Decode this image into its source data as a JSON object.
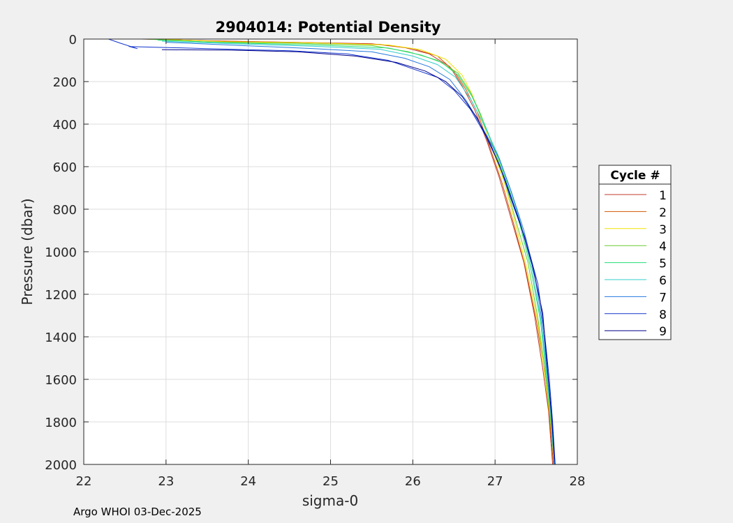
{
  "footer": "Argo WHOI 03-Dec-2025",
  "chart_data": {
    "type": "line",
    "title": "2904014: Potential Density",
    "xlabel": "sigma-0",
    "ylabel": "Pressure (dbar)",
    "xlim": [
      22,
      28
    ],
    "ylim": [
      0,
      2000
    ],
    "y_reversed": true,
    "grid": true,
    "xticks": [
      "22",
      "23",
      "24",
      "25",
      "26",
      "27",
      "28"
    ],
    "yticks": [
      "0",
      "200",
      "400",
      "600",
      "800",
      "1000",
      "1200",
      "1400",
      "1600",
      "1800",
      "2000"
    ],
    "legend": {
      "title": "Cycle #",
      "position": "outside-right"
    },
    "series": [
      {
        "name": "1",
        "color": "#c0392b",
        "points": [
          [
            22.7,
            0
          ],
          [
            23.5,
            8
          ],
          [
            24.5,
            15
          ],
          [
            25.5,
            22
          ],
          [
            25.9,
            40
          ],
          [
            26.2,
            70
          ],
          [
            26.45,
            130
          ],
          [
            26.6,
            220
          ],
          [
            26.75,
            330
          ],
          [
            26.9,
            480
          ],
          [
            27.05,
            650
          ],
          [
            27.2,
            850
          ],
          [
            27.35,
            1050
          ],
          [
            27.48,
            1300
          ],
          [
            27.58,
            1550
          ],
          [
            27.65,
            1750
          ],
          [
            27.7,
            2000
          ]
        ]
      },
      {
        "name": "2",
        "color": "#d35400",
        "points": [
          [
            22.8,
            0
          ],
          [
            23.6,
            10
          ],
          [
            24.6,
            16
          ],
          [
            25.6,
            25
          ],
          [
            26.0,
            45
          ],
          [
            26.3,
            80
          ],
          [
            26.5,
            150
          ],
          [
            26.65,
            240
          ],
          [
            26.78,
            340
          ],
          [
            26.92,
            490
          ],
          [
            27.08,
            670
          ],
          [
            27.22,
            860
          ],
          [
            27.36,
            1060
          ],
          [
            27.5,
            1320
          ],
          [
            27.6,
            1560
          ],
          [
            27.66,
            1770
          ],
          [
            27.71,
            2000
          ]
        ]
      },
      {
        "name": "3",
        "color": "#f1e200",
        "points": [
          [
            22.9,
            0
          ],
          [
            23.7,
            12
          ],
          [
            24.8,
            18
          ],
          [
            25.7,
            28
          ],
          [
            26.1,
            50
          ],
          [
            26.4,
            95
          ],
          [
            26.6,
            170
          ],
          [
            26.72,
            260
          ],
          [
            26.82,
            360
          ],
          [
            26.95,
            500
          ],
          [
            27.1,
            660
          ],
          [
            27.25,
            870
          ],
          [
            27.38,
            1070
          ],
          [
            27.52,
            1330
          ],
          [
            27.6,
            1570
          ],
          [
            27.67,
            1780
          ],
          [
            27.72,
            2000
          ]
        ]
      },
      {
        "name": "4",
        "color": "#66cc33",
        "points": [
          [
            22.75,
            0
          ],
          [
            23.5,
            14
          ],
          [
            24.6,
            20
          ],
          [
            25.5,
            30
          ],
          [
            25.95,
            60
          ],
          [
            26.3,
            100
          ],
          [
            26.55,
            160
          ],
          [
            26.7,
            250
          ],
          [
            26.82,
            350
          ],
          [
            26.95,
            480
          ],
          [
            27.1,
            640
          ],
          [
            27.25,
            850
          ],
          [
            27.4,
            1050
          ],
          [
            27.52,
            1310
          ],
          [
            27.61,
            1560
          ],
          [
            27.67,
            1770
          ],
          [
            27.72,
            2000
          ]
        ]
      },
      {
        "name": "5",
        "color": "#22dd77",
        "points": [
          [
            22.9,
            5
          ],
          [
            23.8,
            18
          ],
          [
            24.8,
            28
          ],
          [
            25.7,
            42
          ],
          [
            26.1,
            75
          ],
          [
            26.35,
            110
          ],
          [
            26.55,
            170
          ],
          [
            26.72,
            270
          ],
          [
            26.85,
            380
          ],
          [
            27.0,
            520
          ],
          [
            27.15,
            680
          ],
          [
            27.3,
            870
          ],
          [
            27.43,
            1070
          ],
          [
            27.55,
            1320
          ],
          [
            27.62,
            1560
          ],
          [
            27.68,
            1770
          ],
          [
            27.72,
            2000
          ]
        ]
      },
      {
        "name": "6",
        "color": "#33cccc",
        "points": [
          [
            22.95,
            10
          ],
          [
            23.8,
            22
          ],
          [
            24.8,
            34
          ],
          [
            25.6,
            48
          ],
          [
            26.0,
            80
          ],
          [
            26.3,
            120
          ],
          [
            26.52,
            180
          ],
          [
            26.7,
            280
          ],
          [
            26.86,
            400
          ],
          [
            27.03,
            540
          ],
          [
            27.18,
            700
          ],
          [
            27.32,
            880
          ],
          [
            27.45,
            1080
          ],
          [
            27.56,
            1330
          ],
          [
            27.63,
            1570
          ],
          [
            27.68,
            1780
          ],
          [
            27.72,
            2000
          ]
        ]
      },
      {
        "name": "7",
        "color": "#2277dd",
        "points": [
          [
            23.0,
            15
          ],
          [
            23.9,
            30
          ],
          [
            24.8,
            45
          ],
          [
            25.5,
            60
          ],
          [
            25.9,
            90
          ],
          [
            26.2,
            130
          ],
          [
            26.45,
            190
          ],
          [
            26.65,
            290
          ],
          [
            26.85,
            420
          ],
          [
            27.05,
            560
          ],
          [
            27.2,
            720
          ],
          [
            27.35,
            900
          ],
          [
            27.48,
            1100
          ],
          [
            27.58,
            1350
          ],
          [
            27.64,
            1580
          ],
          [
            27.69,
            1790
          ],
          [
            27.72,
            2000
          ]
        ]
      },
      {
        "name": "8",
        "color": "#1133cc",
        "points": [
          [
            22.3,
            0
          ],
          [
            22.45,
            20
          ],
          [
            22.65,
            45
          ],
          [
            22.55,
            35
          ],
          [
            23.5,
            45
          ],
          [
            24.5,
            55
          ],
          [
            25.2,
            70
          ],
          [
            25.7,
            100
          ],
          [
            26.0,
            140
          ],
          [
            26.3,
            180
          ],
          [
            26.5,
            240
          ],
          [
            26.7,
            330
          ],
          [
            26.88,
            450
          ],
          [
            27.05,
            590
          ],
          [
            27.2,
            760
          ],
          [
            27.38,
            950
          ],
          [
            27.52,
            1150
          ],
          [
            27.6,
            1380
          ],
          [
            27.66,
            1600
          ],
          [
            27.7,
            1800
          ],
          [
            27.73,
            2000
          ]
        ]
      },
      {
        "name": "9",
        "color": "#000088",
        "points": [
          [
            22.95,
            50
          ],
          [
            23.8,
            52
          ],
          [
            24.6,
            60
          ],
          [
            25.3,
            80
          ],
          [
            25.8,
            110
          ],
          [
            26.15,
            150
          ],
          [
            26.4,
            200
          ],
          [
            26.6,
            270
          ],
          [
            26.78,
            370
          ],
          [
            26.95,
            500
          ],
          [
            27.12,
            660
          ],
          [
            27.3,
            860
          ],
          [
            27.45,
            1060
          ],
          [
            27.58,
            1290
          ],
          [
            27.63,
            1520
          ],
          [
            27.68,
            1740
          ],
          [
            27.73,
            2000
          ]
        ]
      }
    ]
  }
}
